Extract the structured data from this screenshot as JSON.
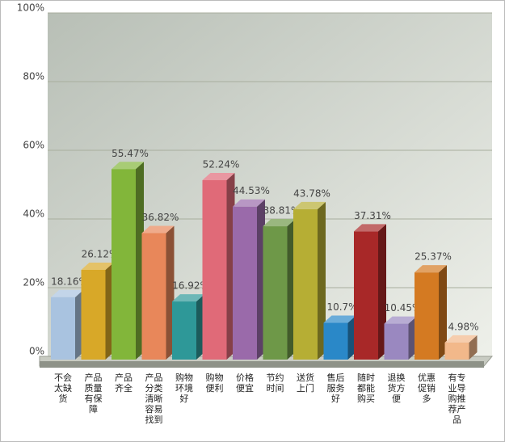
{
  "chart_data": {
    "type": "bar3d",
    "categories": [
      "不会太缺货",
      "产品质量有保障",
      "产品齐全",
      "产品分类清晰容易找到",
      "购物环境好",
      "购物便利",
      "价格便宜",
      "节约时间",
      "送货上门",
      "售后服务好",
      "随时都能购买",
      "退换货方便",
      "优惠促销多",
      "有专业导购推荐产品"
    ],
    "values": [
      18.16,
      26.12,
      55.47,
      36.82,
      16.92,
      52.24,
      44.53,
      38.81,
      43.78,
      10.7,
      37.31,
      10.45,
      25.37,
      4.98
    ],
    "value_labels": [
      "18.16%",
      "26.12%",
      "55.47%",
      "36.82%",
      "16.92%",
      "52.24%",
      "44.53%",
      "38.81%",
      "43.78%",
      "10.7%",
      "37.31%",
      "10.45%",
      "25.37%",
      "4.98%"
    ],
    "colors": [
      "#a9c3e0",
      "#d8a828",
      "#82b63a",
      "#e8875a",
      "#2e9898",
      "#e06a78",
      "#9a6aaa",
      "#6e9848",
      "#b6ae34",
      "#2a88c8",
      "#a82828",
      "#9a88c0",
      "#d47a22",
      "#f2b88a"
    ],
    "ylim": [
      0,
      100
    ],
    "yticks": [
      {
        "value": 0,
        "label": "0%"
      },
      {
        "value": 20,
        "label": "20%"
      },
      {
        "value": 40,
        "label": "40%"
      },
      {
        "value": 60,
        "label": "60%"
      },
      {
        "value": 80,
        "label": "80%"
      },
      {
        "value": 100,
        "label": "100%"
      }
    ],
    "grid": true
  }
}
